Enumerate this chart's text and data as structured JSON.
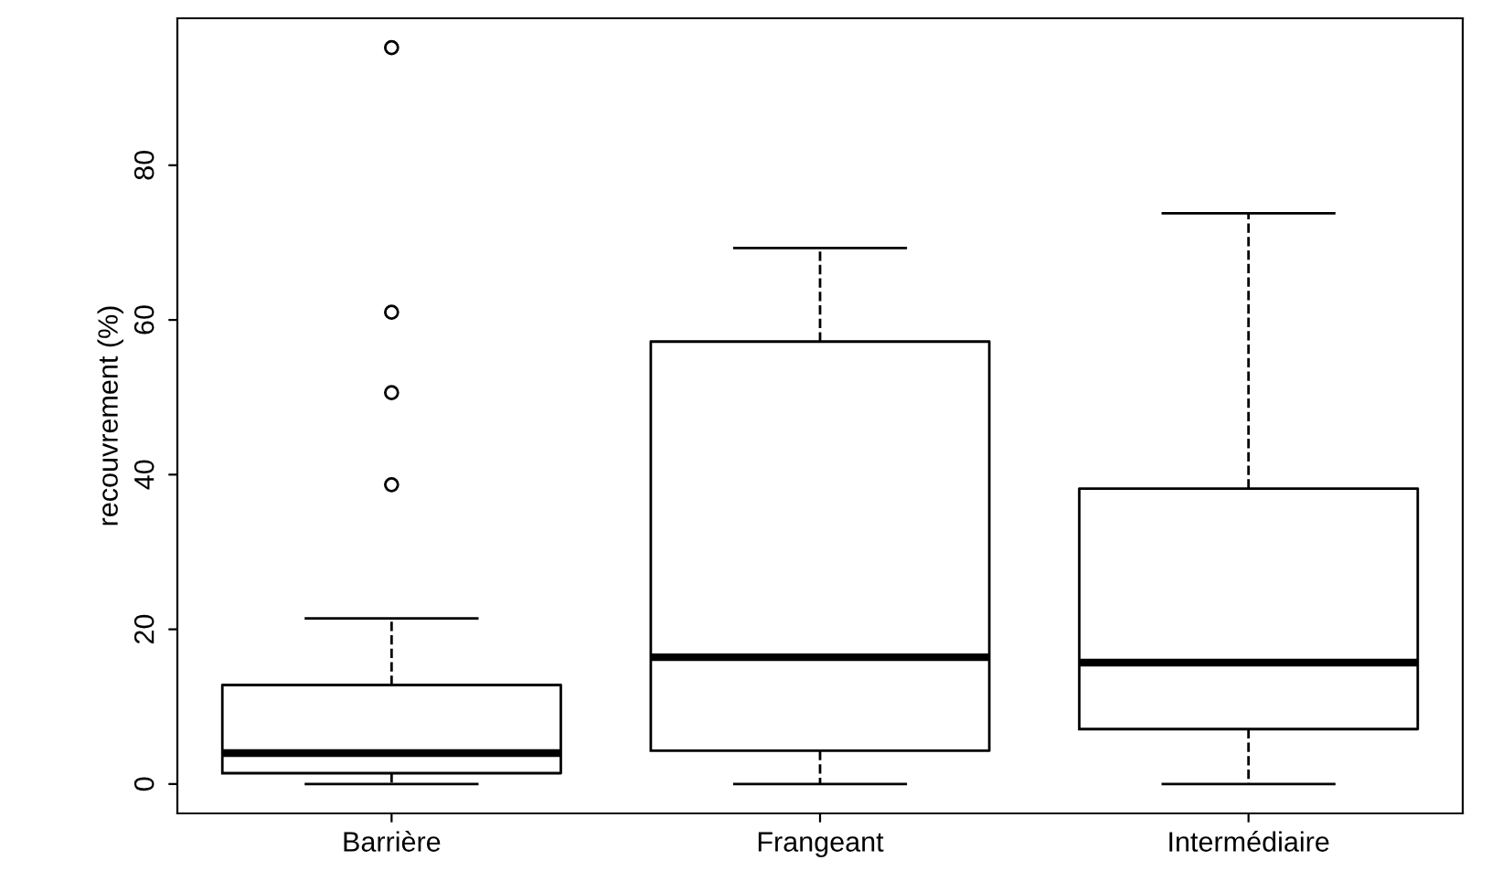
{
  "chart_data": {
    "type": "box",
    "ylabel": "recouvrement (%)",
    "categories": [
      "Barrière",
      "Frangeant",
      "Intermédiaire"
    ],
    "boxes": [
      {
        "low": 0,
        "q1": 1.4,
        "median": 4.0,
        "q3": 12.8,
        "high": 21.4,
        "outliers": [
          38.7,
          50.6,
          61.0,
          95.2
        ]
      },
      {
        "low": 0,
        "q1": 4.3,
        "median": 16.4,
        "q3": 57.2,
        "high": 69.3
      },
      {
        "low": 0,
        "q1": 7.1,
        "median": 15.7,
        "q3": 38.2,
        "high": 73.8
      }
    ],
    "ylim": [
      -3.8,
      99
    ],
    "yticks": [
      0,
      20,
      40,
      60,
      80
    ],
    "grid": false,
    "legend": false
  }
}
